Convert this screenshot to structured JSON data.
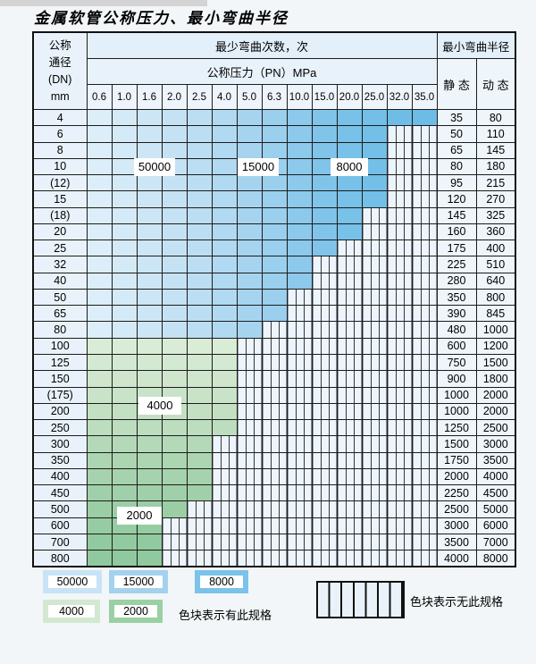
{
  "title": "金属软管公称压力、最小弯曲半径",
  "table": {
    "corner_header": [
      "公称",
      "通径",
      "(DN)",
      "mm"
    ],
    "bend_cycles_header": "最少弯曲次数，次",
    "pressure_header": "公称压力（PN）MPa",
    "radius_header": "最小弯曲半径",
    "static_header": "静 态",
    "dynamic_header": "动 态",
    "pressure_columns": [
      "0.6",
      "1.0",
      "1.6",
      "2.0",
      "2.5",
      "4.0",
      "5.0",
      "6.3",
      "10.0",
      "15.0",
      "20.0",
      "25.0",
      "32.0",
      "35.0"
    ],
    "rows": [
      {
        "dn": "4",
        "zone": "blue",
        "last_colored_col": 14,
        "static": "35",
        "dynamic": "80"
      },
      {
        "dn": "6",
        "zone": "blue",
        "last_colored_col": 12,
        "static": "50",
        "dynamic": "110"
      },
      {
        "dn": "8",
        "zone": "blue",
        "last_colored_col": 12,
        "static": "65",
        "dynamic": "145"
      },
      {
        "dn": "10",
        "zone": "blue",
        "last_colored_col": 12,
        "static": "80",
        "dynamic": "180"
      },
      {
        "dn": "(12)",
        "zone": "blue",
        "last_colored_col": 12,
        "static": "95",
        "dynamic": "215"
      },
      {
        "dn": "15",
        "zone": "blue",
        "last_colored_col": 12,
        "static": "120",
        "dynamic": "270"
      },
      {
        "dn": "(18)",
        "zone": "blue",
        "last_colored_col": 11,
        "static": "145",
        "dynamic": "325"
      },
      {
        "dn": "20",
        "zone": "blue",
        "last_colored_col": 11,
        "static": "160",
        "dynamic": "360"
      },
      {
        "dn": "25",
        "zone": "blue",
        "last_colored_col": 10,
        "static": "175",
        "dynamic": "400"
      },
      {
        "dn": "32",
        "zone": "blue",
        "last_colored_col": 9,
        "static": "225",
        "dynamic": "510"
      },
      {
        "dn": "40",
        "zone": "blue",
        "last_colored_col": 9,
        "static": "280",
        "dynamic": "640"
      },
      {
        "dn": "50",
        "zone": "blue",
        "last_colored_col": 8,
        "static": "350",
        "dynamic": "800"
      },
      {
        "dn": "65",
        "zone": "blue",
        "last_colored_col": 8,
        "static": "390",
        "dynamic": "845"
      },
      {
        "dn": "80",
        "zone": "blue",
        "last_colored_col": 7,
        "static": "480",
        "dynamic": "1000"
      },
      {
        "dn": "100",
        "zone": "green",
        "last_colored_col": 6,
        "static": "600",
        "dynamic": "1200"
      },
      {
        "dn": "125",
        "zone": "green",
        "last_colored_col": 6,
        "static": "750",
        "dynamic": "1500"
      },
      {
        "dn": "150",
        "zone": "green",
        "last_colored_col": 6,
        "static": "900",
        "dynamic": "1800"
      },
      {
        "dn": "(175)",
        "zone": "green",
        "last_colored_col": 6,
        "static": "1000",
        "dynamic": "2000"
      },
      {
        "dn": "200",
        "zone": "green",
        "last_colored_col": 6,
        "static": "1000",
        "dynamic": "2000"
      },
      {
        "dn": "250",
        "zone": "green",
        "last_colored_col": 6,
        "static": "1250",
        "dynamic": "2500"
      },
      {
        "dn": "300",
        "zone": "green",
        "last_colored_col": 5,
        "static": "1500",
        "dynamic": "3000"
      },
      {
        "dn": "350",
        "zone": "green",
        "last_colored_col": 5,
        "static": "1750",
        "dynamic": "3500"
      },
      {
        "dn": "400",
        "zone": "green",
        "last_colored_col": 5,
        "static": "2000",
        "dynamic": "4000"
      },
      {
        "dn": "450",
        "zone": "green",
        "last_colored_col": 5,
        "static": "2250",
        "dynamic": "4500"
      },
      {
        "dn": "500",
        "zone": "green",
        "last_colored_col": 4,
        "static": "2500",
        "dynamic": "5000"
      },
      {
        "dn": "600",
        "zone": "green",
        "last_colored_col": 3,
        "static": "3000",
        "dynamic": "6000"
      },
      {
        "dn": "700",
        "zone": "green",
        "last_colored_col": 3,
        "static": "3500",
        "dynamic": "7000"
      },
      {
        "dn": "800",
        "zone": "green",
        "last_colored_col": 3,
        "static": "4000",
        "dynamic": "8000"
      }
    ]
  },
  "zone_labels": [
    {
      "text": "50000"
    },
    {
      "text": "15000"
    },
    {
      "text": "8000"
    },
    {
      "text": "4000"
    },
    {
      "text": "2000"
    }
  ],
  "legend": {
    "available": [
      {
        "label": "50000",
        "color": "#c8e3f5"
      },
      {
        "label": "15000",
        "color": "#a3d2ee"
      },
      {
        "label": "8000",
        "color": "#7cc3e9"
      },
      {
        "label": "4000",
        "color": "#d2e8d0"
      },
      {
        "label": "2000",
        "color": "#9ad0a3"
      }
    ],
    "available_note": "色块表示有此规格",
    "unavailable_note": "色块表示无此规格"
  },
  "colors": {
    "blue_by_column": [
      "#dceef9",
      "#d5eaf7",
      "#cde6f6",
      "#c5e2f4",
      "#bcdef2",
      "#b1d9f1",
      "#a6d4ef",
      "#9acfed",
      "#8cc9eb",
      "#80c4e9",
      "#78c1e8",
      "#73bfe7",
      "#6fbde6",
      "#6cbce6"
    ],
    "green_by_row": [
      "#d9ecd6",
      "#d4e9d1",
      "#cfe6cc",
      "#c9e3c8",
      "#c4e0c3",
      "#bcddbe",
      "#b4d9b8",
      "#acd5b2",
      "#a6d2ad",
      "#a0d0a9",
      "#9bcea5",
      "#96cca2",
      "#92ca9f",
      "#8fc99d"
    ],
    "stripe_bg": "#edf4fb",
    "stripe_line": "#333333"
  }
}
